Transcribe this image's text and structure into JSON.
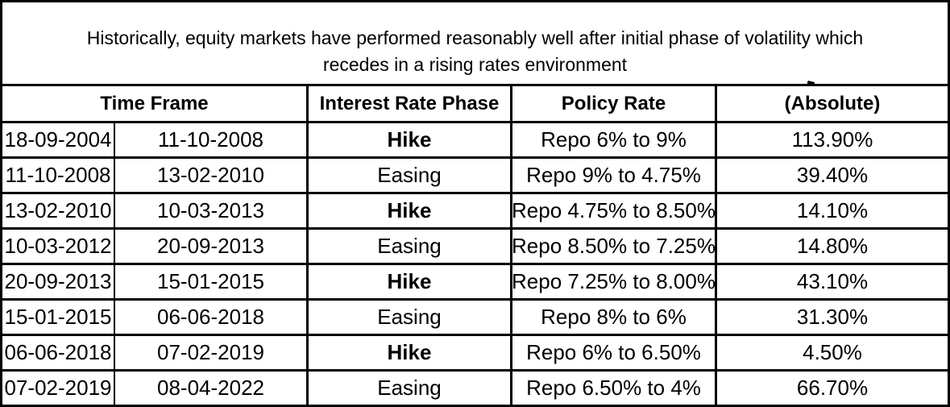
{
  "title": {
    "line1": "Historically, equity markets have performed reasonably well after initial phase of volatility which",
    "line2": "recedes in a rising rates environment"
  },
  "table": {
    "headers": {
      "time_frame": "Time Frame",
      "interest_rate_phase": "Interest Rate Phase",
      "policy_rate": "Policy Rate",
      "returns_absolute": "(Absolute)"
    },
    "rows": [
      {
        "start": "18-09-2004",
        "end": "11-10-2008",
        "phase": "Hike",
        "policy": "Repo 6% to 9%",
        "return": "113.90%"
      },
      {
        "start": "11-10-2008",
        "end": "13-02-2010",
        "phase": "Easing",
        "policy": "Repo 9% to 4.75%",
        "return": "39.40%"
      },
      {
        "start": "13-02-2010",
        "end": "10-03-2013",
        "phase": "Hike",
        "policy": "Repo 4.75% to 8.50%",
        "return": "14.10%"
      },
      {
        "start": "10-03-2012",
        "end": "20-09-2013",
        "phase": "Easing",
        "policy": "Repo 8.50% to 7.25%",
        "return": "14.80%"
      },
      {
        "start": "20-09-2013",
        "end": "15-01-2015",
        "phase": "Hike",
        "policy": "Repo 7.25% to 8.00%",
        "return": "43.10%"
      },
      {
        "start": "15-01-2015",
        "end": "06-06-2018",
        "phase": "Easing",
        "policy": "Repo 8% to 6%",
        "return": "31.30%"
      },
      {
        "start": "06-06-2018",
        "end": "07-02-2019",
        "phase": "Hike",
        "policy": "Repo 6% to 6.50%",
        "return": "4.50%"
      },
      {
        "start": "07-02-2019",
        "end": "08-04-2022",
        "phase": "Easing",
        "policy": "Repo 6.50% to 4%",
        "return": "66.70%"
      }
    ]
  },
  "colors": {
    "border": "#000000",
    "background": "#ffffff",
    "text": "#000000"
  }
}
